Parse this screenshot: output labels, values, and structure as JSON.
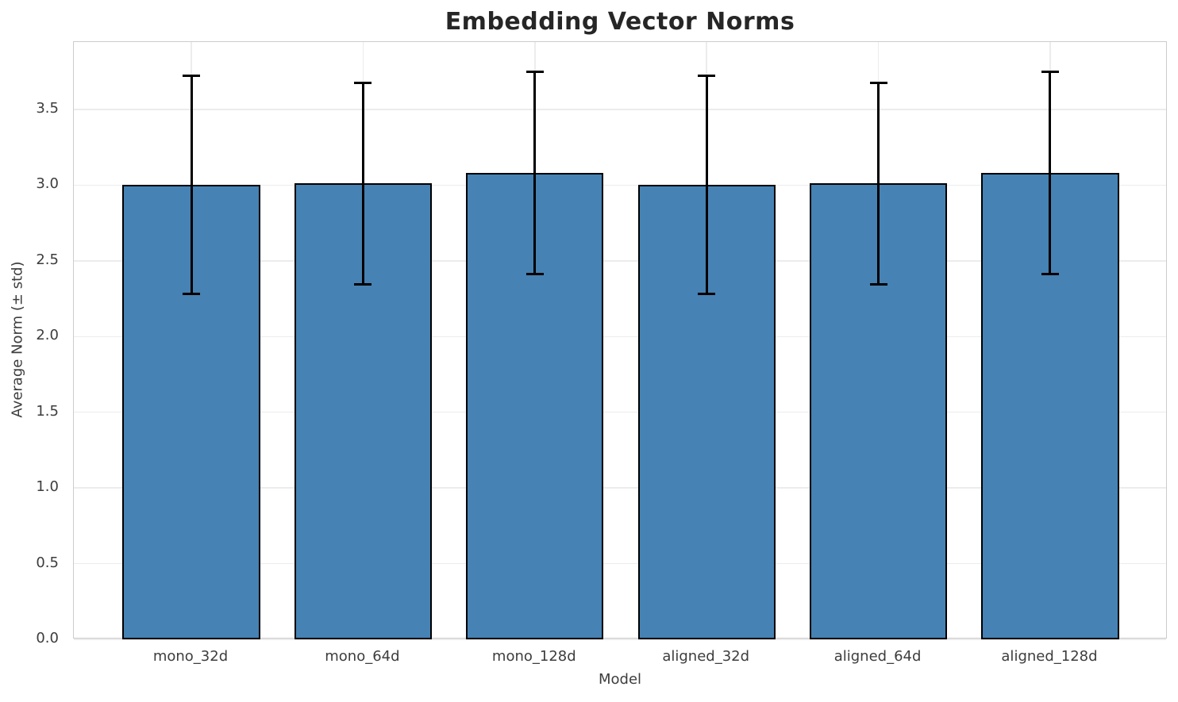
{
  "chart_data": {
    "type": "bar",
    "title": "Embedding Vector Norms",
    "xlabel": "Model",
    "ylabel": "Average Norm (± std)",
    "categories": [
      "mono_32d",
      "mono_64d",
      "mono_128d",
      "aligned_32d",
      "aligned_64d",
      "aligned_128d"
    ],
    "series": [
      {
        "name": "Average Norm",
        "values": [
          3.0,
          3.01,
          3.08,
          3.0,
          3.01,
          3.08
        ],
        "errors": [
          0.72,
          0.665,
          0.67,
          0.72,
          0.665,
          0.67
        ]
      }
    ],
    "yticks": [
      "0.0",
      "0.5",
      "1.0",
      "1.5",
      "2.0",
      "2.5",
      "3.0",
      "3.5"
    ],
    "ylim": [
      0,
      3.945
    ],
    "xlim": [
      -0.684,
      5.684
    ],
    "bar_rel_width": 0.8,
    "grid": "both",
    "legend": "none",
    "colors": {
      "bar_fill": "#4682b4",
      "bar_edge": "#000000",
      "error_bar": "#000000",
      "grid_line": "#ececec",
      "spine": "#cccccc",
      "title_text": "#262626",
      "label_text": "#3d3d3d",
      "background": "#ffffff"
    }
  }
}
